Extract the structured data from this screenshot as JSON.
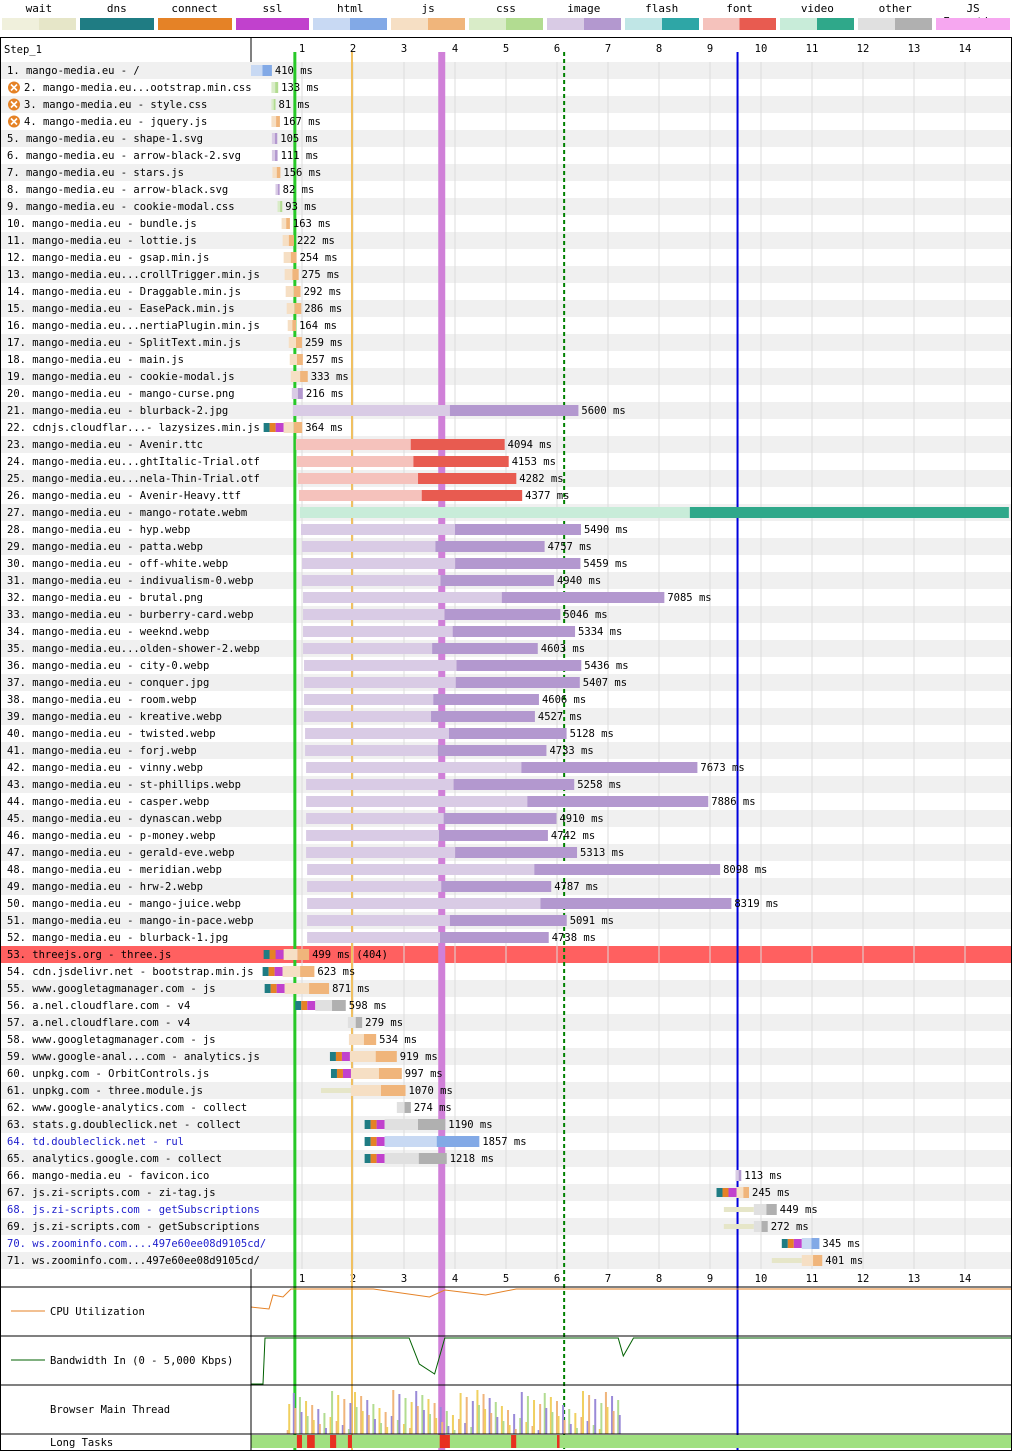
{
  "legend": [
    {
      "label": "wait",
      "color": "#f0f0dc",
      "color2": "#e6e6c8"
    },
    {
      "label": "dns",
      "color": "#1f7c83",
      "color2": "#1f7c83"
    },
    {
      "label": "connect",
      "color": "#e58226",
      "color2": "#e58226"
    },
    {
      "label": "ssl",
      "color": "#c141cd",
      "color2": "#c141cd"
    },
    {
      "label": "html",
      "color": "#c8d9f3",
      "color2": "#82a9e6"
    },
    {
      "label": "js",
      "color": "#f6dfc4",
      "color2": "#f0b57b"
    },
    {
      "label": "css",
      "color": "#d9ecc8",
      "color2": "#b2dc91"
    },
    {
      "label": "image",
      "color": "#d9cbe5",
      "color2": "#b398cf"
    },
    {
      "label": "flash",
      "color": "#c0e6e6",
      "color2": "#2ea6a6"
    },
    {
      "label": "font",
      "color": "#f5c2bc",
      "color2": "#e85b50"
    },
    {
      "label": "video",
      "color": "#c8ecd9",
      "color2": "#2fa88a"
    },
    {
      "label": "other",
      "color": "#e0e0e0",
      "color2": "#b0b0b0"
    },
    {
      "label": "JS Execution",
      "color": "#f6a7f0",
      "color2": "#f6a7f0"
    }
  ],
  "step_label": "Step_1",
  "axis": {
    "ticks": [
      "1",
      "2",
      "3",
      "4",
      "5",
      "6",
      "7",
      "8",
      "9",
      "10",
      "11",
      "12",
      "13",
      "14"
    ],
    "max_seconds": 14.85
  },
  "markers": {
    "start_render": 0.86,
    "dom_interactive": 1.98,
    "dom_content_loaded": 3.74,
    "on_load": 6.14,
    "fully_loaded": 9.54
  },
  "requests": [
    {
      "n": "1.",
      "label": "mango-media.eu - /",
      "start": 0.0,
      "dur": 0.41,
      "type": "html",
      "time": "410 ms"
    },
    {
      "n": "2.",
      "label": "mango-media.eu...ootstrap.min.css",
      "start": 0.4,
      "dur": 0.133,
      "type": "css",
      "time": "133 ms",
      "blocking": true
    },
    {
      "n": "3.",
      "label": "mango-media.eu - style.css",
      "start": 0.4,
      "dur": 0.081,
      "type": "css",
      "time": "81 ms",
      "blocking": true
    },
    {
      "n": "4.",
      "label": "mango-media.eu - jquery.js",
      "start": 0.4,
      "dur": 0.167,
      "type": "js",
      "time": "167 ms",
      "blocking": true
    },
    {
      "n": "5.",
      "label": "mango-media.eu - shape-1.svg",
      "start": 0.41,
      "dur": 0.105,
      "type": "image",
      "time": "105 ms"
    },
    {
      "n": "6.",
      "label": "mango-media.eu - arrow-black-2.svg",
      "start": 0.41,
      "dur": 0.111,
      "type": "image",
      "time": "111 ms"
    },
    {
      "n": "7.",
      "label": "mango-media.eu - stars.js",
      "start": 0.42,
      "dur": 0.156,
      "type": "js",
      "time": "156 ms"
    },
    {
      "n": "8.",
      "label": "mango-media.eu - arrow-black.svg",
      "start": 0.48,
      "dur": 0.082,
      "type": "image",
      "time": "82 ms"
    },
    {
      "n": "9.",
      "label": "mango-media.eu - cookie-modal.css",
      "start": 0.52,
      "dur": 0.093,
      "type": "css",
      "time": "93 ms"
    },
    {
      "n": "10.",
      "label": "mango-media.eu - bundle.js",
      "start": 0.6,
      "dur": 0.163,
      "type": "js",
      "time": "163 ms"
    },
    {
      "n": "11.",
      "label": "mango-media.eu - lottie.js",
      "start": 0.62,
      "dur": 0.222,
      "type": "js",
      "time": "222 ms"
    },
    {
      "n": "12.",
      "label": "mango-media.eu - gsap.min.js",
      "start": 0.64,
      "dur": 0.254,
      "type": "js",
      "time": "254 ms"
    },
    {
      "n": "13.",
      "label": "mango-media.eu...crollTrigger.min.js",
      "start": 0.66,
      "dur": 0.275,
      "type": "js",
      "time": "275 ms"
    },
    {
      "n": "14.",
      "label": "mango-media.eu - Draggable.min.js",
      "start": 0.68,
      "dur": 0.292,
      "type": "js",
      "time": "292 ms"
    },
    {
      "n": "15.",
      "label": "mango-media.eu - EasePack.min.js",
      "start": 0.7,
      "dur": 0.286,
      "type": "js",
      "time": "286 ms"
    },
    {
      "n": "16.",
      "label": "mango-media.eu...nertiaPlugin.min.js",
      "start": 0.72,
      "dur": 0.164,
      "type": "js",
      "time": "164 ms"
    },
    {
      "n": "17.",
      "label": "mango-media.eu - SplitText.min.js",
      "start": 0.74,
      "dur": 0.259,
      "type": "js",
      "time": "259 ms"
    },
    {
      "n": "18.",
      "label": "mango-media.eu - main.js",
      "start": 0.76,
      "dur": 0.257,
      "type": "js",
      "time": "257 ms"
    },
    {
      "n": "19.",
      "label": "mango-media.eu - cookie-modal.js",
      "start": 0.78,
      "dur": 0.333,
      "type": "js",
      "time": "333 ms"
    },
    {
      "n": "20.",
      "label": "mango-media.eu - mango-curse.png",
      "start": 0.8,
      "dur": 0.216,
      "type": "image",
      "time": "216 ms"
    },
    {
      "n": "21.",
      "label": "mango-media.eu - blurback-2.jpg",
      "start": 0.82,
      "dur": 5.6,
      "type": "image",
      "time": "5600 ms"
    },
    {
      "n": "22.",
      "label": "cdnjs.cloudflar...- lazysizes.min.js",
      "start": 0.64,
      "dur": 0.364,
      "type": "js",
      "time": "364 ms",
      "connect": true
    },
    {
      "n": "23.",
      "label": "mango-media.eu - Avenir.ttc",
      "start": 0.88,
      "dur": 4.094,
      "type": "font",
      "time": "4094 ms"
    },
    {
      "n": "24.",
      "label": "mango-media.eu...ghtItalic-Trial.otf",
      "start": 0.9,
      "dur": 4.153,
      "type": "font",
      "time": "4153 ms"
    },
    {
      "n": "25.",
      "label": "mango-media.eu...nela-Thin-Trial.otf",
      "start": 0.92,
      "dur": 4.282,
      "type": "font",
      "time": "4282 ms"
    },
    {
      "n": "26.",
      "label": "mango-media.eu - Avenir-Heavy.ttf",
      "start": 0.94,
      "dur": 4.377,
      "type": "font",
      "time": "4377 ms"
    },
    {
      "n": "27.",
      "label": "mango-media.eu - mango-rotate.webm",
      "start": 0.96,
      "dur": 13.9,
      "type": "video",
      "time": ""
    },
    {
      "n": "28.",
      "label": "mango-media.eu - hyp.webp",
      "start": 0.98,
      "dur": 5.49,
      "type": "image",
      "time": "5490 ms"
    },
    {
      "n": "29.",
      "label": "mango-media.eu - patta.webp",
      "start": 1.0,
      "dur": 4.757,
      "type": "image",
      "time": "4757 ms"
    },
    {
      "n": "30.",
      "label": "mango-media.eu - off-white.webp",
      "start": 1.0,
      "dur": 5.459,
      "type": "image",
      "time": "5459 ms"
    },
    {
      "n": "31.",
      "label": "mango-media.eu - indivualism-0.webp",
      "start": 1.0,
      "dur": 4.94,
      "type": "image",
      "time": "4940 ms"
    },
    {
      "n": "32.",
      "label": "mango-media.eu - brutal.png",
      "start": 1.02,
      "dur": 7.085,
      "type": "image",
      "time": "7085 ms"
    },
    {
      "n": "33.",
      "label": "mango-media.eu - burberry-card.webp",
      "start": 1.02,
      "dur": 5.046,
      "type": "image",
      "time": "5046 ms"
    },
    {
      "n": "34.",
      "label": "mango-media.eu - weeknd.webp",
      "start": 1.02,
      "dur": 5.334,
      "type": "image",
      "time": "5334 ms"
    },
    {
      "n": "35.",
      "label": "mango-media.eu...olden-shower-2.webp",
      "start": 1.02,
      "dur": 4.603,
      "type": "image",
      "time": "4603 ms"
    },
    {
      "n": "36.",
      "label": "mango-media.eu - city-0.webp",
      "start": 1.04,
      "dur": 5.436,
      "type": "image",
      "time": "5436 ms"
    },
    {
      "n": "37.",
      "label": "mango-media.eu - conquer.jpg",
      "start": 1.04,
      "dur": 5.407,
      "type": "image",
      "time": "5407 ms"
    },
    {
      "n": "38.",
      "label": "mango-media.eu - room.webp",
      "start": 1.04,
      "dur": 4.606,
      "type": "image",
      "time": "4606 ms"
    },
    {
      "n": "39.",
      "label": "mango-media.eu - kreative.webp",
      "start": 1.04,
      "dur": 4.527,
      "type": "image",
      "time": "4527 ms"
    },
    {
      "n": "40.",
      "label": "mango-media.eu - twisted.webp",
      "start": 1.06,
      "dur": 5.128,
      "type": "image",
      "time": "5128 ms"
    },
    {
      "n": "41.",
      "label": "mango-media.eu - forj.webp",
      "start": 1.06,
      "dur": 4.733,
      "type": "image",
      "time": "4733 ms"
    },
    {
      "n": "42.",
      "label": "mango-media.eu - vinny.webp",
      "start": 1.08,
      "dur": 7.673,
      "type": "image",
      "time": "7673 ms"
    },
    {
      "n": "43.",
      "label": "mango-media.eu - st-phillips.webp",
      "start": 1.08,
      "dur": 5.258,
      "type": "image",
      "time": "5258 ms"
    },
    {
      "n": "44.",
      "label": "mango-media.eu - casper.webp",
      "start": 1.08,
      "dur": 7.886,
      "type": "image",
      "time": "7886 ms"
    },
    {
      "n": "45.",
      "label": "mango-media.eu - dynascan.webp",
      "start": 1.08,
      "dur": 4.91,
      "type": "image",
      "time": "4910 ms"
    },
    {
      "n": "46.",
      "label": "mango-media.eu - p-money.webp",
      "start": 1.08,
      "dur": 4.742,
      "type": "image",
      "time": "4742 ms"
    },
    {
      "n": "47.",
      "label": "mango-media.eu - gerald-eve.webp",
      "start": 1.08,
      "dur": 5.313,
      "type": "image",
      "time": "5313 ms"
    },
    {
      "n": "48.",
      "label": "mango-media.eu - meridian.webp",
      "start": 1.1,
      "dur": 8.098,
      "type": "image",
      "time": "8098 ms"
    },
    {
      "n": "49.",
      "label": "mango-media.eu - hrw-2.webp",
      "start": 1.1,
      "dur": 4.787,
      "type": "image",
      "time": "4787 ms"
    },
    {
      "n": "50.",
      "label": "mango-media.eu - mango-juice.webp",
      "start": 1.1,
      "dur": 8.319,
      "type": "image",
      "time": "8319 ms"
    },
    {
      "n": "51.",
      "label": "mango-media.eu - mango-in-pace.webp",
      "start": 1.1,
      "dur": 5.091,
      "type": "image",
      "time": "5091 ms"
    },
    {
      "n": "52.",
      "label": "mango-media.eu - blurback-1.jpg",
      "start": 1.1,
      "dur": 4.738,
      "type": "image",
      "time": "4738 ms"
    },
    {
      "n": "53.",
      "label": "threejs.org - three.js",
      "start": 0.64,
      "dur": 0.499,
      "type": "js",
      "time": "499 ms (404)",
      "error": true,
      "connect": true
    },
    {
      "n": "54.",
      "label": "cdn.jsdelivr.net - bootstrap.min.js",
      "start": 0.62,
      "dur": 0.623,
      "type": "js",
      "time": "623 ms",
      "connect": true
    },
    {
      "n": "55.",
      "label": "www.googletagmanager.com - js",
      "start": 0.66,
      "dur": 0.871,
      "type": "js",
      "time": "871 ms",
      "connect": true
    },
    {
      "n": "56.",
      "label": "a.nel.cloudflare.com - v4",
      "start": 1.26,
      "dur": 0.598,
      "type": "other",
      "time": "598 ms",
      "connect": true
    },
    {
      "n": "57.",
      "label": "a.nel.cloudflare.com - v4",
      "start": 1.9,
      "dur": 0.279,
      "type": "other",
      "time": "279 ms"
    },
    {
      "n": "58.",
      "label": "www.googletagmanager.com - js",
      "start": 1.92,
      "dur": 0.534,
      "type": "js",
      "time": "534 ms"
    },
    {
      "n": "59.",
      "label": "www.google-anal...com - analytics.js",
      "start": 1.94,
      "dur": 0.919,
      "type": "js",
      "time": "919 ms",
      "connect": true
    },
    {
      "n": "60.",
      "label": "unpkg.com - OrbitControls.js",
      "start": 1.96,
      "dur": 0.997,
      "type": "js",
      "time": "997 ms",
      "connect": true
    },
    {
      "n": "61.",
      "label": "unpkg.com - three.module.js",
      "start": 1.96,
      "dur": 1.07,
      "type": "js",
      "time": "1070 ms",
      "wait": true
    },
    {
      "n": "62.",
      "label": "www.google-analytics.com - collect",
      "start": 2.86,
      "dur": 0.274,
      "type": "other",
      "time": "274 ms"
    },
    {
      "n": "63.",
      "label": "stats.g.doubleclick.net - collect",
      "start": 2.62,
      "dur": 1.19,
      "type": "other",
      "time": "1190 ms",
      "connect": true
    },
    {
      "n": "64.",
      "label": "td.doubleclick.net - rul",
      "start": 2.62,
      "dur": 1.857,
      "type": "html",
      "time": "1857 ms",
      "connect": true,
      "redirect": true
    },
    {
      "n": "65.",
      "label": "analytics.google.com - collect",
      "start": 2.62,
      "dur": 1.218,
      "type": "other",
      "time": "1218 ms",
      "connect": true
    },
    {
      "n": "66.",
      "label": "mango-media.eu - favicon.ico",
      "start": 9.5,
      "dur": 0.113,
      "type": "image",
      "time": "113 ms"
    },
    {
      "n": "67.",
      "label": "js.zi-scripts.com - zi-tag.js",
      "start": 9.52,
      "dur": 0.245,
      "type": "js",
      "time": "245 ms",
      "connect": true
    },
    {
      "n": "68.",
      "label": "js.zi-scripts.com - getSubscriptions",
      "start": 9.86,
      "dur": 0.449,
      "type": "other",
      "time": "449 ms",
      "redirect": true,
      "wait": true
    },
    {
      "n": "69.",
      "label": "js.zi-scripts.com - getSubscriptions",
      "start": 9.86,
      "dur": 0.272,
      "type": "other",
      "time": "272 ms",
      "wait": true
    },
    {
      "n": "70.",
      "label": "ws.zoominfo.com....497e60ee08d9105cd/",
      "start": 10.8,
      "dur": 0.345,
      "type": "html",
      "time": "345 ms",
      "redirect": true,
      "connect": true
    },
    {
      "n": "71.",
      "label": "ws.zoominfo.com...497e60ee08d9105cd/",
      "start": 10.8,
      "dur": 0.401,
      "type": "js",
      "time": "401 ms",
      "wait": true
    }
  ],
  "graphs": {
    "cpu_label": "CPU Utilization",
    "bandwidth_label": "Bandwidth In (0 - 5,000 Kbps)",
    "main_thread_label": "Browser Main Thread",
    "long_tasks_label": "Long Tasks"
  },
  "colors": {
    "row_alt": "#f0f0f0",
    "error_row": "#ff6060",
    "redirect_text": "#1c1ccc",
    "start_render": "#28c828",
    "dom_interactive": "#f0c060",
    "dcl": "#d080d8",
    "onload": "#008000",
    "fully_loaded": "#0000dd",
    "cpu": "#e58226",
    "bandwidth": "#006000",
    "long_task": "#e83020",
    "long_task_ok": "#a0e080"
  }
}
